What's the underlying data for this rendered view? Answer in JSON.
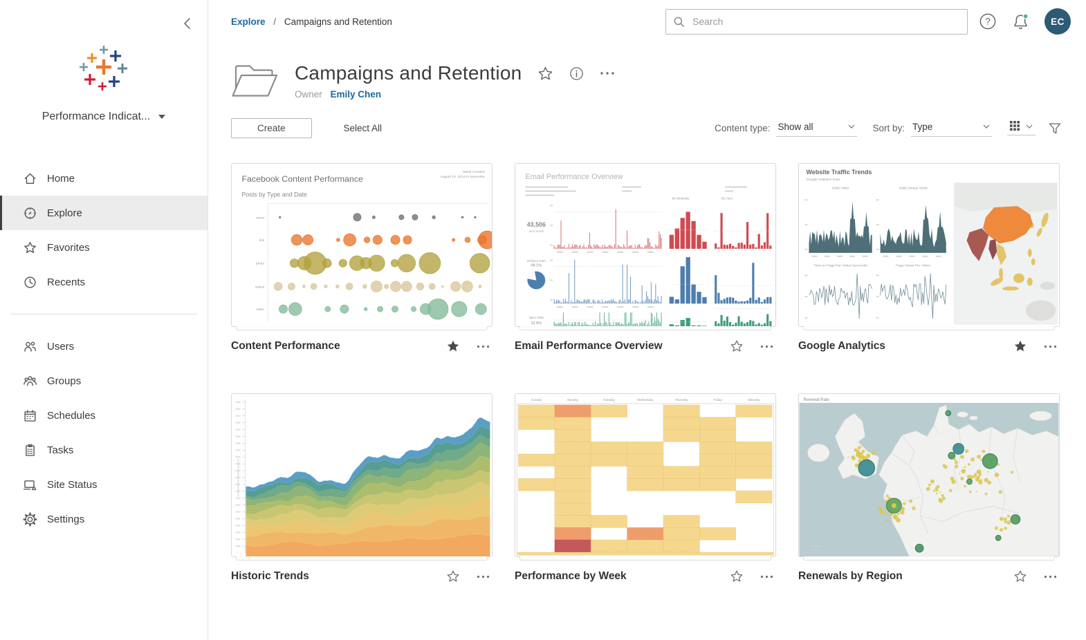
{
  "sidebar": {
    "site_switcher": {
      "label": "Performance Indicat..."
    },
    "nav": [
      {
        "label": "Home"
      },
      {
        "label": "Explore"
      },
      {
        "label": "Favorites"
      },
      {
        "label": "Recents"
      }
    ],
    "admin_nav": [
      {
        "label": "Users"
      },
      {
        "label": "Groups"
      },
      {
        "label": "Schedules"
      },
      {
        "label": "Tasks"
      },
      {
        "label": "Site Status"
      },
      {
        "label": "Settings"
      }
    ]
  },
  "header": {
    "breadcrumb": {
      "root": "Explore",
      "separator": "/",
      "current": "Campaigns and Retention"
    },
    "search": {
      "placeholder": "Search"
    },
    "help_glyph": "?",
    "avatar": {
      "initials": "EC"
    }
  },
  "page": {
    "title": "Campaigns and Retention",
    "owner_label": "Owner",
    "owner_name": "Emily Chen"
  },
  "toolbar": {
    "create": "Create",
    "select_all": "Select All",
    "content_type_label": "Content type:",
    "content_type_value": "Show all",
    "sort_label": "Sort by:",
    "sort_value": "Type"
  },
  "cards": [
    {
      "title": "Content Performance",
      "favorited": true,
      "thumb": {
        "type": "bubbles",
        "title": "Facebook Content Performance",
        "subtitle": "Posts by Type and Date",
        "corner_line1": "Week Created",
        "corner_line2": "August 10, 2014 to Novembe",
        "rows": [
          {
            "label": "event",
            "color": "#6e6e6e"
          },
          {
            "label": "link",
            "color": "#e8762d"
          },
          {
            "label": "photo",
            "color": "#b2a23d"
          },
          {
            "label": "status",
            "color": "#d9c79c"
          },
          {
            "label": "video",
            "color": "#84bb9b"
          }
        ]
      }
    },
    {
      "title": "Email Performance Overview",
      "favorited": false,
      "thumb": {
        "type": "email",
        "title": "Email Performance Overview",
        "col_headers": [
          "By Weekday",
          "By Hour"
        ],
        "rows": [
          {
            "color": "#d04a50",
            "stat": "43,506",
            "caption": "sent sends"
          },
          {
            "color": "#4d7ead",
            "stat": "98.1%",
            "caption": "Delivery Rate"
          },
          {
            "color": "#3f9e7c",
            "stat": "31.8%",
            "caption": "Open Rate"
          }
        ]
      }
    },
    {
      "title": "Google Analytics",
      "favorited": true,
      "thumb": {
        "type": "traffic",
        "title": "Website Traffic Trends",
        "subtitle": "Google Analytics Data",
        "chart_titles": [
          "Daily Visits",
          "Daily Unique Visits",
          "Time on Page Per Visitor (seconds)",
          "Page Views Per Visitor"
        ],
        "colors": {
          "area": "#4e6e78",
          "china": "#ef8a3c",
          "india": "#a85a52",
          "accent_yellow": "#e3c468",
          "land": "#e7e9e7"
        }
      }
    },
    {
      "title": "Historic Trends",
      "favorited": false,
      "thumb": {
        "type": "stacked",
        "bands_bottom_to_top": [
          "#f2a85e",
          "#f0b768",
          "#ebc673",
          "#decb78",
          "#c9c672",
          "#adbd6e",
          "#8fb477",
          "#70aa88",
          "#569d92",
          "#5a9ec6"
        ]
      }
    },
    {
      "title": "Performance by Week",
      "favorited": false,
      "thumb": {
        "type": "heatmap",
        "days": [
          "Sunday",
          "Monday",
          "Tuesday",
          "Wednesday",
          "Thursday",
          "Friday",
          "Saturday"
        ],
        "matrix": [
          "yoy.y.y",
          "yy..yy.",
          ".y..yy.",
          ".yyy.yy",
          "yyyy.yy",
          ".y.yyyy",
          "yy.yyy.",
          ".y....y",
          ".y.....",
          ".yy.y..",
          ".o.oyy.",
          ".ryyy.."
        ],
        "colors": {
          "y": "#f5d88e",
          "o": "#f09d6c",
          "r": "#c4595c"
        }
      }
    },
    {
      "title": "Renewals by Region",
      "favorited": false,
      "thumb": {
        "type": "map",
        "title": "Renewal Rate",
        "colors": {
          "sea": "#b9cccf",
          "land": "#f1f1ef",
          "dot": "#d9c750",
          "bubble_green": "#55a05f",
          "bubble_teal": "#3f8d95"
        }
      }
    }
  ],
  "colors": {
    "accent_blue": "#1a699e",
    "avatar_bg": "#2d5b76",
    "notification_dot": "#4db584"
  }
}
